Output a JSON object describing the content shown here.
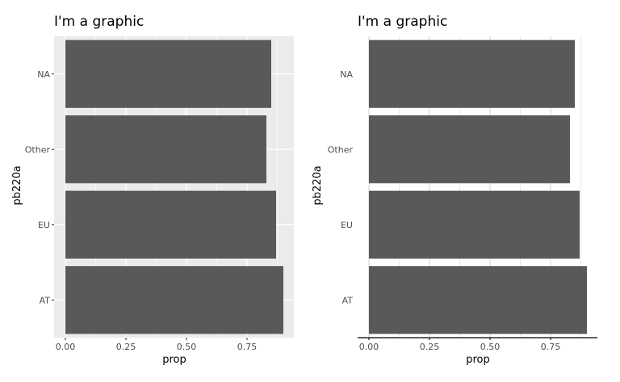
{
  "chart_data": [
    {
      "type": "bar",
      "orientation": "horizontal",
      "title": "I'm a graphic",
      "xlabel": "prop",
      "ylabel": "pb220a",
      "categories": [
        "AT",
        "EU",
        "Other",
        "NA"
      ],
      "values": [
        0.9,
        0.87,
        0.83,
        0.85
      ],
      "xlim": [
        0,
        0.95
      ],
      "x_ticks": [
        "0.00",
        "0.25",
        "0.50",
        "0.75"
      ],
      "grid": true,
      "theme": "gray",
      "bar_color": "#595959",
      "panel_background": "#ebebeb",
      "grid_color": "#ffffff"
    },
    {
      "type": "bar",
      "orientation": "horizontal",
      "title": "I'm a graphic",
      "xlabel": "prop",
      "ylabel": "pb220a",
      "categories": [
        "AT",
        "EU",
        "Other",
        "NA"
      ],
      "values": [
        0.9,
        0.87,
        0.83,
        0.85
      ],
      "xlim": [
        0,
        0.95
      ],
      "x_ticks": [
        "0.00",
        "0.25",
        "0.50",
        "0.75"
      ],
      "grid": true,
      "theme": "minimal",
      "bar_color": "#595959",
      "panel_background": "#ffffff",
      "grid_color": "#d9d9d9"
    }
  ]
}
